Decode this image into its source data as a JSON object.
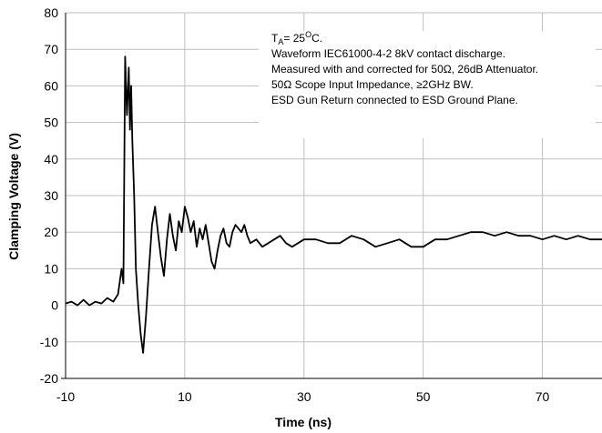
{
  "chart_data": {
    "type": "line",
    "title": "",
    "xlabel": "Time (ns)",
    "ylabel": "Clamping Voltage (V)",
    "xlim": [
      -10,
      80
    ],
    "ylim": [
      -20,
      80
    ],
    "x_ticks": [
      -10,
      10,
      30,
      50,
      70
    ],
    "y_ticks": [
      -20,
      -10,
      0,
      10,
      20,
      30,
      40,
      50,
      60,
      70,
      80
    ],
    "grid": true,
    "legend": "none",
    "series": [
      {
        "color": "#000000",
        "x": [
          -10,
          -9,
          -8,
          -7,
          -6,
          -5,
          -4,
          -3,
          -2,
          -1.2,
          -0.6,
          -0.3,
          0,
          0.3,
          0.6,
          0.8,
          1.0,
          1.2,
          1.5,
          1.8,
          2.2,
          2.6,
          3.0,
          3.5,
          4.0,
          4.5,
          5.0,
          5.5,
          6.0,
          6.5,
          7.0,
          7.5,
          8.0,
          8.5,
          9.0,
          9.5,
          10.0,
          10.5,
          11.0,
          11.5,
          12.0,
          12.5,
          13.0,
          13.5,
          14.0,
          14.5,
          15.0,
          15.5,
          16.0,
          16.5,
          17.0,
          17.5,
          18.0,
          18.5,
          19.0,
          19.5,
          20.0,
          20.5,
          21.0,
          22.0,
          23.0,
          24.0,
          25.0,
          26.0,
          27.0,
          28.0,
          29.0,
          30.0,
          32.0,
          34.0,
          36.0,
          38.0,
          40.0,
          42.0,
          44.0,
          46.0,
          48.0,
          50.0,
          52.0,
          54.0,
          56.0,
          58.0,
          60.0,
          62.0,
          64.0,
          66.0,
          68.0,
          70.0,
          72.0,
          74.0,
          76.0,
          78.0,
          80.0
        ],
        "y": [
          0.5,
          1,
          0,
          1.5,
          0,
          1,
          0.5,
          2,
          1,
          3,
          10,
          6,
          68,
          52,
          65,
          48,
          60,
          45,
          30,
          10,
          0,
          -8,
          -13,
          -3,
          10,
          22,
          27,
          20,
          13,
          8,
          18,
          25,
          19,
          15,
          23,
          20,
          27,
          24,
          20,
          23,
          16,
          21,
          18,
          22,
          17,
          12,
          10,
          15,
          19,
          21,
          17,
          16,
          20,
          22,
          21,
          20,
          22,
          19,
          17,
          18,
          16,
          17,
          18,
          19,
          17,
          16,
          17,
          18,
          18,
          17,
          17,
          19,
          18,
          16,
          17,
          18,
          16,
          16,
          18,
          18,
          19,
          20,
          20,
          19,
          20,
          19,
          19,
          18,
          19,
          18,
          19,
          18,
          18
        ]
      }
    ],
    "annotation_lines": [
      "= 25",
      "C.",
      "Waveform IEC61000-4-2 8kV contact discharge.",
      "Measured with and corrected for 50Ω, 26dB Attenuator.",
      "50Ω Scope Input Impedance, ≥2GHz BW.",
      "ESD Gun Return connected to ESD Ground Plane."
    ],
    "annotation_T": "T",
    "annotation_T_sub": "A",
    "annotation_degree": "O"
  }
}
